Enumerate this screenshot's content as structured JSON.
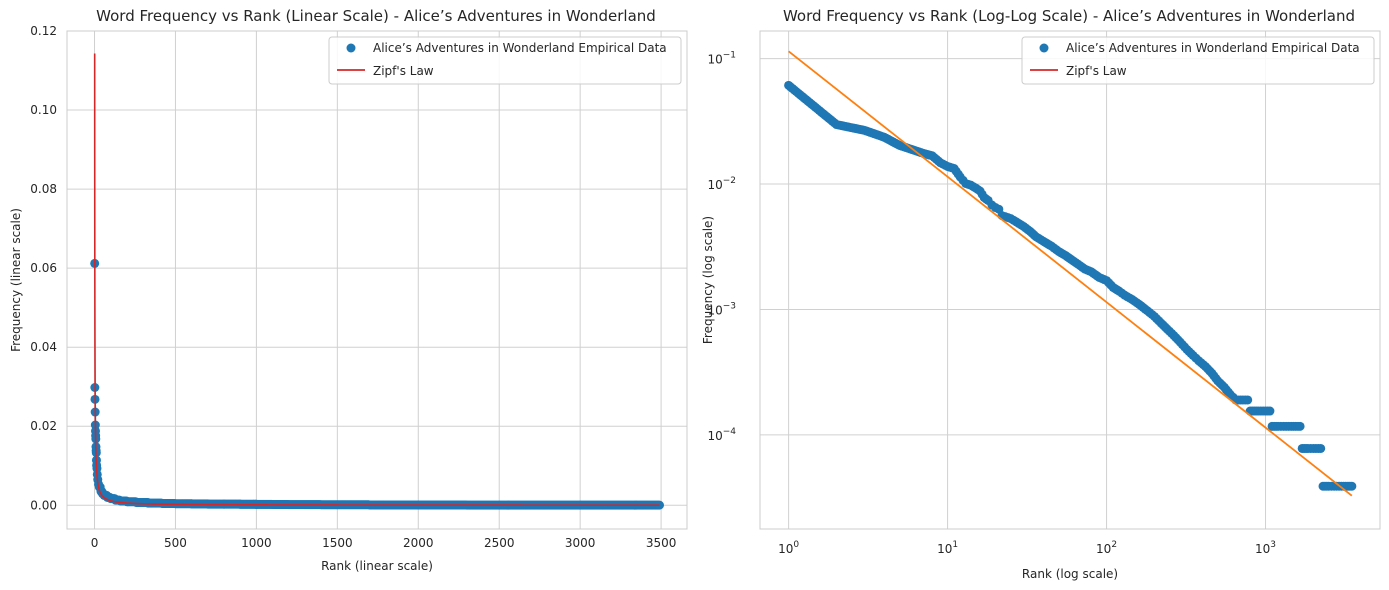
{
  "colors": {
    "empirical": "#1f77b4",
    "zipf_linear": "#d62728",
    "zipf_log": "#ff7f0e",
    "grid": "#d0d0d0",
    "spine": "#cccccc"
  },
  "chart_data": [
    {
      "type": "scatter",
      "title": "Word Frequency vs Rank (Linear Scale) - Alice’s Adventures in Wonderland",
      "xlabel": "Rank (linear scale)",
      "ylabel": "Frequency (linear scale)",
      "xscale": "linear",
      "yscale": "linear",
      "xlim": [
        -170,
        3660
      ],
      "ylim": [
        -0.006,
        0.12
      ],
      "xticks": [
        0,
        500,
        1000,
        1500,
        2000,
        2500,
        3000,
        3500
      ],
      "xtick_labels": [
        "0",
        "500",
        "1000",
        "1500",
        "2000",
        "2500",
        "3000",
        "3500"
      ],
      "yticks": [
        0.0,
        0.02,
        0.04,
        0.06,
        0.08,
        0.1,
        0.12
      ],
      "ytick_labels": [
        "0.00",
        "0.02",
        "0.04",
        "0.06",
        "0.08",
        "0.10",
        "0.12"
      ],
      "grid": true,
      "legend_position": "top-right",
      "series": [
        {
          "name": "Alice’s Adventures in Wonderland Empirical Data",
          "kind": "scatter",
          "color": "#1f77b4",
          "points": [
            [
              1,
              0.0612
            ],
            [
              2,
              0.0298
            ],
            [
              3,
              0.0268
            ],
            [
              4,
              0.0236
            ],
            [
              5,
              0.0203
            ],
            [
              6,
              0.0188
            ],
            [
              7,
              0.0176
            ],
            [
              8,
              0.0168
            ],
            [
              9,
              0.0148
            ],
            [
              10,
              0.0138
            ],
            [
              11,
              0.0133
            ],
            [
              12,
              0.0114
            ],
            [
              13,
              0.0101
            ],
            [
              15,
              0.0093
            ],
            [
              17,
              0.0078
            ],
            [
              20,
              0.0065
            ],
            [
              25,
              0.0053
            ],
            [
              30,
              0.0046
            ],
            [
              40,
              0.0035
            ],
            [
              50,
              0.0029
            ],
            [
              60,
              0.0025
            ],
            [
              80,
              0.002
            ],
            [
              100,
              0.0017
            ],
            [
              130,
              0.0013
            ],
            [
              160,
              0.0011
            ],
            [
              200,
              0.0009
            ],
            [
              260,
              0.0007
            ],
            [
              330,
              0.00055
            ],
            [
              420,
              0.00045
            ],
            [
              500,
              0.0004
            ],
            [
              600,
              0.00035
            ],
            [
              700,
              0.0003
            ],
            [
              800,
              0.00028
            ],
            [
              900,
              0.00025
            ],
            [
              1000,
              0.00023
            ],
            [
              1100,
              0.0002
            ],
            [
              1200,
              0.00018
            ],
            [
              1300,
              0.00016
            ],
            [
              1400,
              0.00015
            ],
            [
              1500,
              0.00015
            ],
            [
              1600,
              0.00015
            ],
            [
              1700,
              8e-05
            ],
            [
              1800,
              8e-05
            ],
            [
              1900,
              8e-05
            ],
            [
              2000,
              8e-05
            ],
            [
              2100,
              8e-05
            ],
            [
              2200,
              8e-05
            ],
            [
              2300,
              4e-05
            ],
            [
              2400,
              4e-05
            ],
            [
              2500,
              4e-05
            ],
            [
              2600,
              4e-05
            ],
            [
              2700,
              4e-05
            ],
            [
              2800,
              4e-05
            ],
            [
              2900,
              4e-05
            ],
            [
              3000,
              4e-05
            ],
            [
              3100,
              4e-05
            ],
            [
              3200,
              4e-05
            ],
            [
              3300,
              4e-05
            ],
            [
              3400,
              4e-05
            ],
            [
              3490,
              4e-05
            ]
          ]
        },
        {
          "name": "Zipf's Law",
          "kind": "line",
          "color": "#d62728",
          "formula_c": 0.1143,
          "x_range": [
            1,
            3490
          ]
        }
      ]
    },
    {
      "type": "scatter",
      "title": "Word Frequency vs Rank (Log-Log Scale) - Alice’s Adventures in Wonderland",
      "xlabel": "Rank (log scale)",
      "ylabel": "Frequency (log scale)",
      "xscale": "log",
      "yscale": "log",
      "xlim_log10": [
        -0.18,
        3.72
      ],
      "ylim_log10": [
        -4.75,
        -0.78
      ],
      "xticks_exp": [
        0,
        1,
        2,
        3
      ],
      "yticks_exp": [
        -1,
        -2,
        -3,
        -4
      ],
      "grid": true,
      "legend_position": "top-right",
      "series": [
        {
          "name": "Alice’s Adventures in Wonderland Empirical Data",
          "kind": "scatter",
          "color": "#1f77b4",
          "points": [
            [
              1,
              0.0612
            ],
            [
              2,
              0.0298
            ],
            [
              3,
              0.0268
            ],
            [
              4,
              0.0236
            ],
            [
              5,
              0.0203
            ],
            [
              6,
              0.0188
            ],
            [
              7,
              0.0176
            ],
            [
              8,
              0.0168
            ],
            [
              9,
              0.0148
            ],
            [
              10,
              0.0138
            ],
            [
              11,
              0.0133
            ],
            [
              12,
              0.0114
            ],
            [
              13,
              0.0101
            ],
            [
              14,
              0.0098
            ],
            [
              15,
              0.0093
            ],
            [
              16,
              0.0088
            ],
            [
              17,
              0.0078
            ],
            [
              18,
              0.0074
            ],
            [
              19,
              0.0068
            ],
            [
              20,
              0.0065
            ],
            [
              21,
              0.0063
            ],
            [
              22,
              0.0056
            ],
            [
              23,
              0.0055
            ],
            [
              24,
              0.0054
            ],
            [
              25,
              0.0053
            ],
            [
              27,
              0.005
            ],
            [
              30,
              0.0046
            ],
            [
              33,
              0.0042
            ],
            [
              36,
              0.0038
            ],
            [
              40,
              0.0035
            ],
            [
              45,
              0.0032
            ],
            [
              50,
              0.0029
            ],
            [
              55,
              0.0027
            ],
            [
              60,
              0.0025
            ],
            [
              66,
              0.0023
            ],
            [
              73,
              0.0021
            ],
            [
              80,
              0.002
            ],
            [
              90,
              0.0018
            ],
            [
              100,
              0.0017
            ],
            [
              110,
              0.0015
            ],
            [
              120,
              0.0014
            ],
            [
              130,
              0.0013
            ],
            [
              145,
              0.0012
            ],
            [
              160,
              0.0011
            ],
            [
              180,
              0.00098
            ],
            [
              200,
              0.00088
            ],
            [
              220,
              0.00078
            ],
            [
              240,
              0.0007
            ],
            [
              265,
              0.00062
            ],
            [
              290,
              0.00055
            ],
            [
              320,
              0.00048
            ],
            [
              350,
              0.00043
            ],
            [
              380,
              0.00039
            ],
            [
              420,
              0.00035
            ],
            [
              460,
              0.00031
            ],
            [
              500,
              0.00027
            ],
            [
              550,
              0.00024
            ],
            [
              600,
              0.00021
            ],
            [
              650,
              0.00019
            ],
            [
              720,
              0.00019
            ],
            [
              800,
              0.000155
            ],
            [
              900,
              0.000155
            ],
            [
              1000,
              0.000155
            ],
            [
              1100,
              0.000117
            ],
            [
              1200,
              0.000117
            ],
            [
              1300,
              0.000117
            ],
            [
              1450,
              0.000117
            ],
            [
              1600,
              0.000117
            ],
            [
              1700,
              7.8e-05
            ],
            [
              1850,
              7.8e-05
            ],
            [
              2000,
              7.8e-05
            ],
            [
              2150,
              7.8e-05
            ],
            [
              2300,
              3.9e-05
            ],
            [
              2500,
              3.9e-05
            ],
            [
              2700,
              3.9e-05
            ],
            [
              2900,
              3.9e-05
            ],
            [
              3100,
              3.9e-05
            ],
            [
              3300,
              3.9e-05
            ],
            [
              3490,
              3.9e-05
            ]
          ]
        },
        {
          "name": "Zipf's Law",
          "kind": "line",
          "color": "#ff7f0e",
          "legend_color": "#d62728",
          "formula_c": 0.1143,
          "x_range": [
            1,
            3490
          ]
        }
      ]
    }
  ]
}
